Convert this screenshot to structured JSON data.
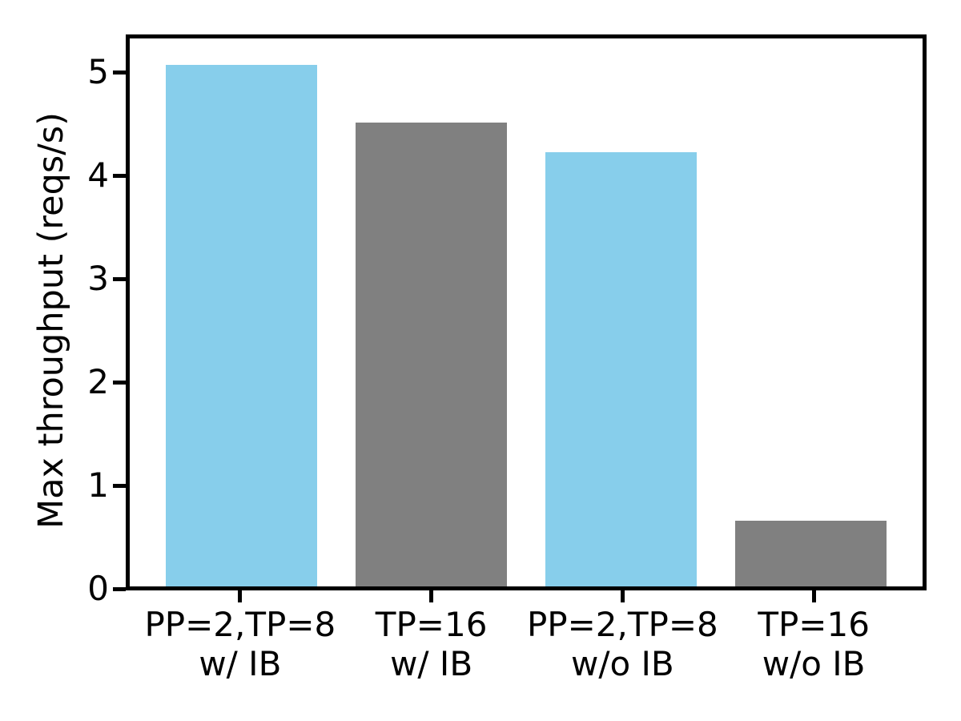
{
  "chart_data": {
    "type": "bar",
    "ylabel": "Max throughput (reqs/s)",
    "categories": [
      "PP=2,TP=8\nw/ IB",
      "TP=16\nw/ IB",
      "PP=2,TP=8\nw/o IB",
      "TP=16\nw/o IB"
    ],
    "values": [
      5.09,
      4.53,
      4.24,
      0.64
    ],
    "bar_colors": [
      "#87CEEB",
      "#808080",
      "#87CEEB",
      "#808080"
    ],
    "ylim": [
      0,
      5.35
    ],
    "yticks": [
      0,
      1,
      2,
      3,
      4,
      5
    ],
    "grid": false,
    "legend_position": "none",
    "bar_width_fraction": 0.8
  },
  "colors": {
    "axis": "#000000",
    "background": "#FFFFFF",
    "highlight_bar": "#87CEEB",
    "baseline_bar": "#808080"
  }
}
